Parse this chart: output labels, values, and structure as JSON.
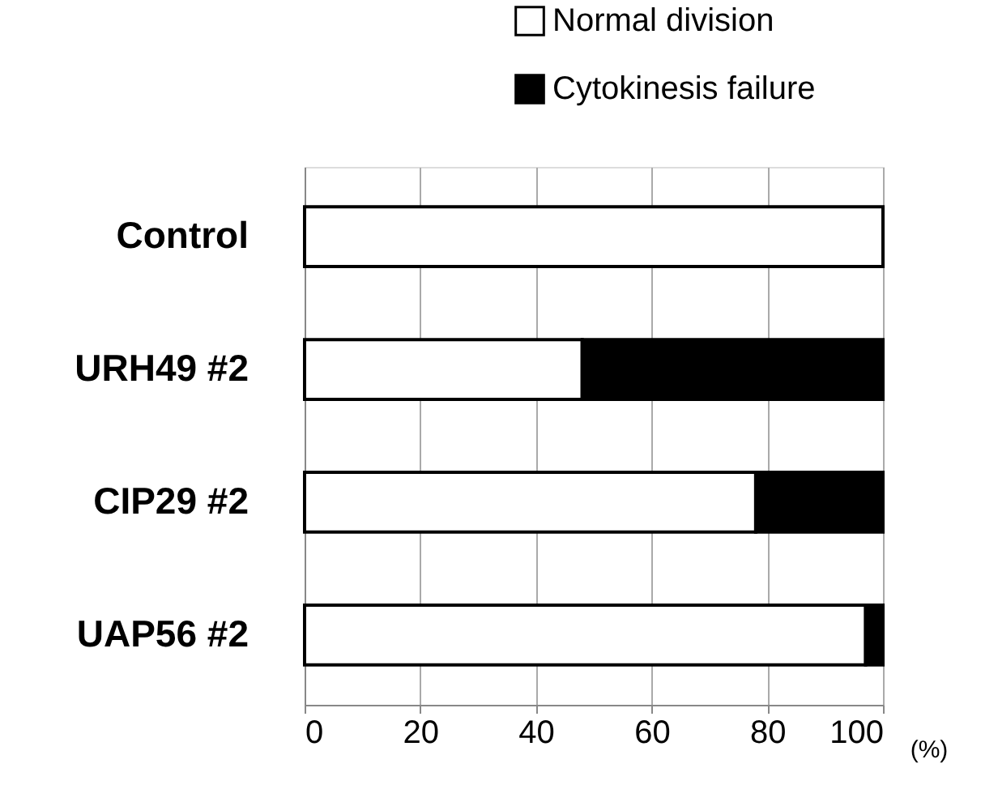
{
  "chart_data": {
    "type": "bar",
    "orientation": "horizontal",
    "stacked": true,
    "categories": [
      "Control",
      "URH49 #2",
      "CIP29 #2",
      "UAP56 #2"
    ],
    "series": [
      {
        "name": "Normal division",
        "color": "#ffffff",
        "values": [
          100,
          48,
          78,
          97
        ]
      },
      {
        "name": "Cytokinesis failure",
        "color": "#000000",
        "values": [
          0,
          52,
          22,
          3
        ]
      }
    ],
    "xlabel": "(%)",
    "xlim": [
      0,
      100
    ],
    "xticks": [
      0,
      20,
      40,
      60,
      80,
      100
    ],
    "grid": "x",
    "legend": "top right"
  }
}
